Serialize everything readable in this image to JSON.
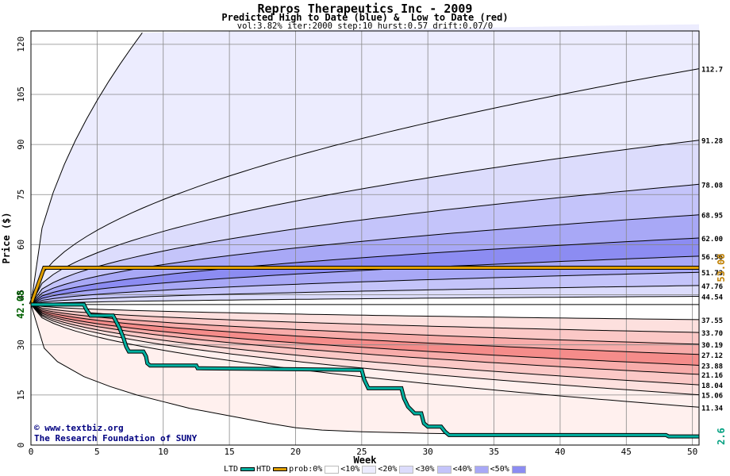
{
  "header": {
    "title": "Repros Therapeutics Inc - 2009",
    "subtitle": "Predicted High to Date (blue) &  Low to Date (red)",
    "params": "vol:3.82% iter:2000 step:10 hurst:0.57 drift:0.07/0"
  },
  "credits": {
    "site": "© www.textbiz.org",
    "org": "The Research Foundation of SUNY"
  },
  "colors": {
    "blue_bands": [
      "#ececfe",
      "#dcdcfc",
      "#c4c4fa",
      "#a8a8f6",
      "#8c8cf2"
    ],
    "red_bands": [
      "#fff0ee",
      "#fde0de",
      "#fbc8c6",
      "#f8acaa",
      "#f58c8a"
    ],
    "htd_line": "#00b0a0",
    "prob_line": "#e0a000",
    "current_price_color": "#006000",
    "target_price_color": "#c08000",
    "final_ltd_color": "#00a080"
  },
  "legend": {
    "items": [
      {
        "label": "LTD",
        "kind": "line",
        "color": "#00b0a0"
      },
      {
        "label": "HTD",
        "kind": "line",
        "color": "#e0a000"
      },
      {
        "label": "prob:0%",
        "kind": "swatch",
        "color": "#ffffff"
      },
      {
        "label": "<10%",
        "kind": "swatch",
        "color": "#ececfe"
      },
      {
        "label": "<20%",
        "kind": "swatch",
        "color": "#dcdcfc"
      },
      {
        "label": "<30%",
        "kind": "swatch",
        "color": "#c4c4fa"
      },
      {
        "label": "<40%",
        "kind": "swatch",
        "color": "#a8a8f6"
      },
      {
        "label": "<50%",
        "kind": "swatch",
        "color": "#8c8cf2"
      }
    ]
  },
  "chart_data": {
    "type": "area",
    "title": "Repros Therapeutics Inc - 2009",
    "subtitle": "Predicted High to Date (blue) &  Low to Date (red)",
    "xlabel": "Week",
    "ylabel": "Price ($)",
    "xlim": [
      0,
      50.5
    ],
    "ylim": [
      0,
      124
    ],
    "xticks": [
      0,
      5,
      10,
      15,
      20,
      25,
      30,
      35,
      40,
      45,
      50
    ],
    "yticks": [
      0,
      15,
      30,
      45,
      60,
      75,
      90,
      105,
      120
    ],
    "grid": true,
    "start_price": 42.08,
    "start_price_label": "42.08",
    "target_price": 53.08,
    "target_price_label": "53.08",
    "final_ltd": 2.6,
    "final_ltd_label": "2.6",
    "upper_percentiles": [
      {
        "final": 112.7,
        "label": "112.7"
      },
      {
        "final": 91.28,
        "label": "91.28"
      },
      {
        "final": 78.08,
        "label": "78.08"
      },
      {
        "final": 68.95,
        "label": "68.95"
      },
      {
        "final": 62.0,
        "label": "62.00"
      },
      {
        "final": 56.56,
        "label": "56.56"
      },
      {
        "final": 51.73,
        "label": "51.73"
      },
      {
        "final": 47.76,
        "label": "47.76"
      },
      {
        "final": 44.54,
        "label": "44.54"
      }
    ],
    "lower_percentiles": [
      {
        "final": 37.55,
        "label": "37.55"
      },
      {
        "final": 33.7,
        "label": "33.70"
      },
      {
        "final": 30.19,
        "label": "30.19"
      },
      {
        "final": 27.12,
        "label": "27.12"
      },
      {
        "final": 23.88,
        "label": "23.88"
      },
      {
        "final": 21.16,
        "label": "21.16"
      },
      {
        "final": 18.04,
        "label": "18.04"
      },
      {
        "final": 15.06,
        "label": "15.06"
      },
      {
        "final": 11.34,
        "label": "11.34"
      }
    ],
    "outer_upper_reach_125_week": 8.9,
    "outer_lower": [
      [
        0,
        42.08
      ],
      [
        1,
        29.0
      ],
      [
        2,
        25.0
      ],
      [
        4,
        20.5
      ],
      [
        6,
        17.5
      ],
      [
        8,
        15.0
      ],
      [
        10,
        13.0
      ],
      [
        12,
        11.0
      ],
      [
        14,
        9.5
      ],
      [
        16,
        8.0
      ],
      [
        18,
        6.5
      ],
      [
        20,
        5.2
      ],
      [
        22,
        4.5
      ],
      [
        25,
        4.0
      ],
      [
        30,
        3.5
      ],
      [
        35,
        3.2
      ],
      [
        40,
        3.0
      ],
      [
        45,
        2.8
      ],
      [
        50,
        2.5
      ],
      [
        50.5,
        2.5
      ]
    ],
    "series": [
      {
        "name": "LTD",
        "points": [
          [
            0,
            42.08
          ],
          [
            4,
            42.08
          ],
          [
            4.2,
            40.5
          ],
          [
            4.5,
            38.8
          ],
          [
            6.2,
            38.8
          ],
          [
            6.5,
            36.5
          ],
          [
            6.7,
            35.0
          ],
          [
            7.0,
            32.0
          ],
          [
            7.2,
            29.5
          ],
          [
            7.4,
            28.0
          ],
          [
            8.5,
            28.0
          ],
          [
            8.7,
            26.5
          ],
          [
            8.8,
            24.5
          ],
          [
            9.0,
            23.8
          ],
          [
            12.5,
            23.8
          ],
          [
            12.6,
            23.0
          ],
          [
            25,
            22.5
          ],
          [
            25.2,
            19.5
          ],
          [
            25.5,
            17.0
          ],
          [
            28,
            17.0
          ],
          [
            28.2,
            14.0
          ],
          [
            28.5,
            11.5
          ],
          [
            29,
            9.5
          ],
          [
            29.5,
            9.5
          ],
          [
            29.7,
            6.5
          ],
          [
            30,
            5.5
          ],
          [
            31,
            5.5
          ],
          [
            31.3,
            4.0
          ],
          [
            31.6,
            3.0
          ],
          [
            33,
            3.0
          ],
          [
            35,
            3.0
          ],
          [
            48,
            3.0
          ],
          [
            48.2,
            2.6
          ],
          [
            50.5,
            2.6
          ]
        ]
      }
    ]
  }
}
